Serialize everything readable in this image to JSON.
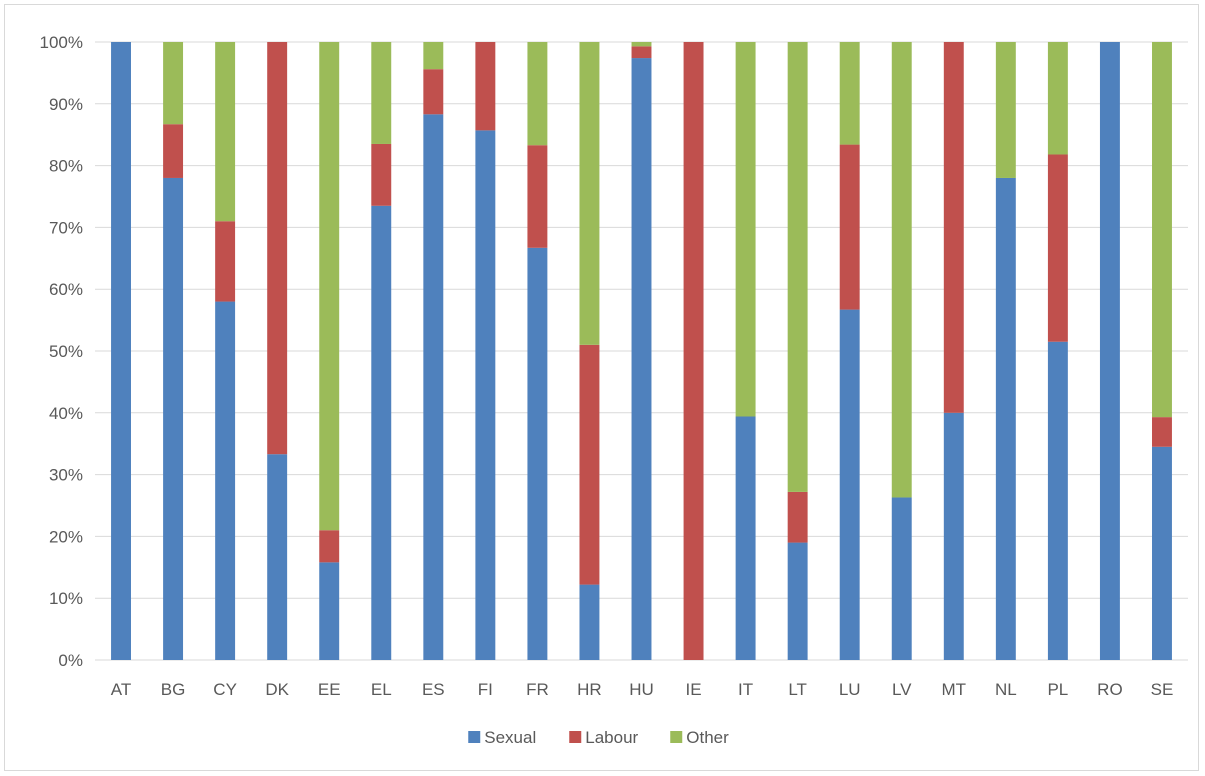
{
  "chart_data": {
    "type": "bar",
    "stacked": true,
    "percent": true,
    "categories": [
      "AT",
      "BG",
      "CY",
      "DK",
      "EE",
      "EL",
      "ES",
      "FI",
      "FR",
      "HR",
      "HU",
      "IE",
      "IT",
      "LT",
      "LU",
      "LV",
      "MT",
      "NL",
      "PL",
      "RO",
      "SE"
    ],
    "series": [
      {
        "name": "Sexual",
        "color": "#4f81bd",
        "values": [
          100,
          78,
          58,
          33.3,
          15.8,
          73.5,
          88.3,
          85.7,
          66.7,
          12.2,
          97.4,
          0,
          39.4,
          19.0,
          56.7,
          26.3,
          40.0,
          78.0,
          51.5,
          100,
          34.5
        ]
      },
      {
        "name": "Labour",
        "color": "#c0504d",
        "values": [
          0,
          8.7,
          13,
          66.7,
          5.2,
          10.0,
          7.3,
          14.3,
          16.6,
          38.8,
          1.9,
          100,
          0,
          8.2,
          26.7,
          0,
          60.0,
          0,
          30.3,
          0,
          4.8
        ]
      },
      {
        "name": "Other",
        "color": "#9bbb59",
        "values": [
          0,
          13.3,
          29,
          0,
          79.0,
          16.5,
          4.4,
          0,
          16.7,
          49.0,
          0.7,
          0,
          60.6,
          72.8,
          16.6,
          73.7,
          0,
          22.0,
          18.2,
          0,
          60.7
        ]
      }
    ],
    "y_ticks": [
      "0%",
      "10%",
      "20%",
      "30%",
      "40%",
      "50%",
      "60%",
      "70%",
      "80%",
      "90%",
      "100%"
    ],
    "ylim": [
      0,
      100
    ],
    "title": "",
    "xlabel": "",
    "ylabel": "",
    "grid": true,
    "legend_position": "bottom",
    "gridline_color": "#d9d9d9"
  }
}
